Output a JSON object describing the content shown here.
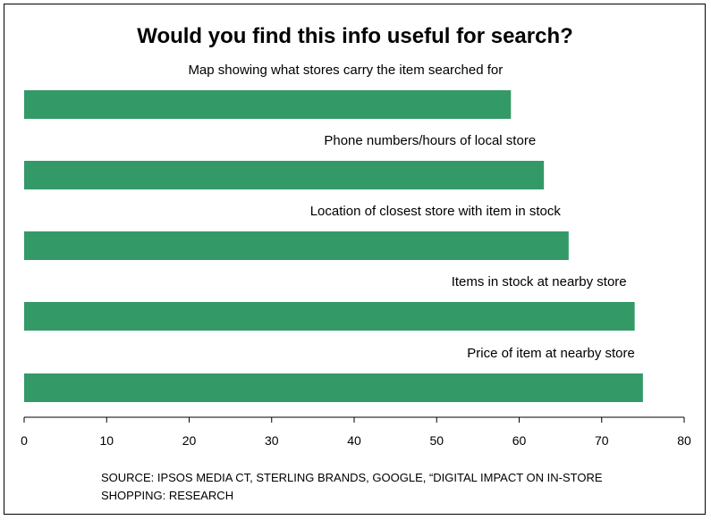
{
  "chart_data": {
    "type": "bar",
    "orientation": "horizontal",
    "title": "Would you find this info useful for search?",
    "categories": [
      "Map showing what stores carry the item searched for",
      "Phone numbers/hours of local store",
      "Location of closest store with item in stock",
      "Items in stock at nearby store",
      "Price of item at nearby store"
    ],
    "values": [
      59,
      63,
      66,
      74,
      75
    ],
    "xlim": [
      0,
      80
    ],
    "xticks": [
      "0",
      "10",
      "20",
      "30",
      "40",
      "50",
      "60",
      "70",
      "80"
    ],
    "bar_color": "#339966",
    "grid": false,
    "legend": "none"
  },
  "source": {
    "line1": "SOURCE: IPSOS MEDIA CT, STERLING BRANDS, GOOGLE, “DIGITAL IMPACT ON IN-STORE",
    "line2": "SHOPPING: RESEARCH"
  }
}
